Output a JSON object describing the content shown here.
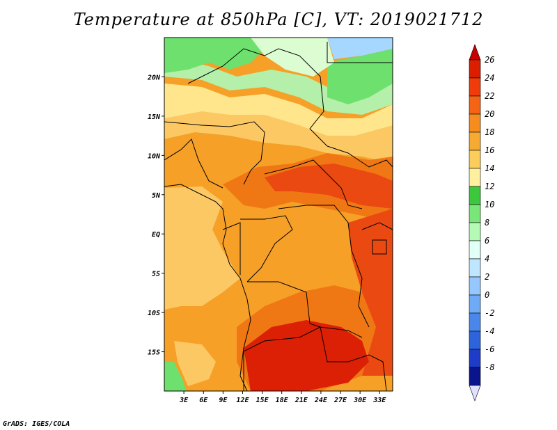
{
  "title": "Temperature at 850hPa [C], VT: 2019021712",
  "credit": "GrADS: IGES/COLA",
  "map": {
    "lon_range": [
      0,
      35
    ],
    "lat_range": [
      -20,
      25
    ],
    "lat_ticks": [
      {
        "lat": 20,
        "label": "20N"
      },
      {
        "lat": 15,
        "label": "15N"
      },
      {
        "lat": 10,
        "label": "10N"
      },
      {
        "lat": 5,
        "label": "5N"
      },
      {
        "lat": 0,
        "label": "EQ"
      },
      {
        "lat": -5,
        "label": "5S"
      },
      {
        "lat": -10,
        "label": "10S"
      },
      {
        "lat": -15,
        "label": "15S"
      }
    ],
    "lon_ticks": [
      {
        "lon": 3,
        "label": "3E"
      },
      {
        "lon": 6,
        "label": "6E"
      },
      {
        "lon": 9,
        "label": "9E"
      },
      {
        "lon": 12,
        "label": "12E"
      },
      {
        "lon": 15,
        "label": "15E"
      },
      {
        "lon": 18,
        "label": "18E"
      },
      {
        "lon": 21,
        "label": "21E"
      },
      {
        "lon": 24,
        "label": "24E"
      },
      {
        "lon": 27,
        "label": "27E"
      },
      {
        "lon": 30,
        "label": "30E"
      },
      {
        "lon": 33,
        "label": "33E"
      }
    ],
    "colors": {
      "green_zone": "#6ee06e",
      "light_green": "#b4f0aa",
      "pale_green": "#dcfcd2",
      "light_blue": "#a5d7ff",
      "yellow": "#ffe68c",
      "light_orange": "#fcc864",
      "orange": "#f6a028",
      "dark_orange": "#f07814",
      "red_orange": "#ea4a12",
      "red": "#dc2006"
    }
  },
  "colorbar": {
    "labels": [
      "26",
      "24",
      "22",
      "20",
      "18",
      "16",
      "14",
      "12",
      "10",
      "8",
      "6",
      "4",
      "2",
      "0",
      "-2",
      "-4",
      "-6",
      "-8"
    ],
    "colors": [
      "#dc1e00",
      "#f03c0a",
      "#f56414",
      "#f68c1e",
      "#f6aa32",
      "#fccd5a",
      "#fff0a0",
      "#3cc83c",
      "#78e678",
      "#b4fab4",
      "#e2fff8",
      "#bee6ff",
      "#96c8ff",
      "#6eaaf5",
      "#4b87eb",
      "#2d64dc",
      "#1e3cc8",
      "#0a148c"
    ],
    "top_arrow_color": "#c80000",
    "bottom_arrow_color": "#e1e1ff"
  }
}
